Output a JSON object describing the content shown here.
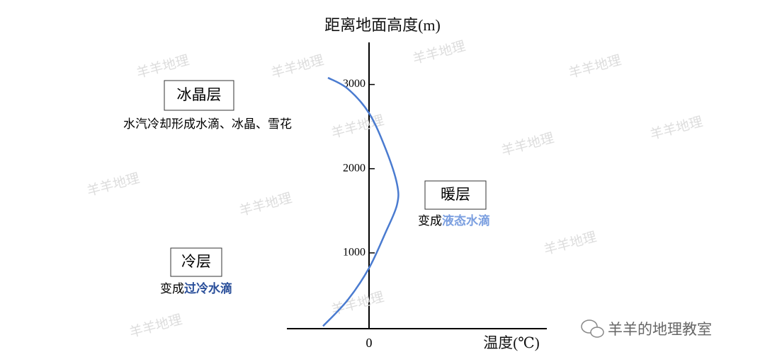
{
  "chart_data": {
    "type": "line",
    "y_label": "距离地面高度(m)",
    "x_label": "温度(℃)",
    "x": [
      -2.8,
      -1.3,
      0,
      1,
      1.7,
      1.7,
      1,
      0,
      -1.3,
      -2.5
    ],
    "series": [
      {
        "color": "#4a7bd0",
        "values": [
          130,
          440,
          820,
          1240,
          1570,
          1820,
          2240,
          2660,
          2950,
          3080
        ]
      }
    ],
    "xlim": [
      -5,
      10
    ],
    "xticks": [
      0
    ],
    "ylim": [
      100,
      3500
    ],
    "yticks": [
      1000,
      2000,
      3000
    ],
    "layers": [
      {
        "name": "冰晶层",
        "note": "水汽冷却形成水滴、冰晶、雪花"
      },
      {
        "name": "暖层",
        "note_prefix": "变成",
        "note_highlight": "液态水滴",
        "highlight_color": "#7b9fe0"
      },
      {
        "name": "冷层",
        "note_prefix": "变成",
        "note_highlight": "过冷水滴",
        "highlight_color": "#2a4f9a"
      }
    ],
    "watermark": "羊羊地理",
    "footer": "羊羊的地理教室"
  }
}
